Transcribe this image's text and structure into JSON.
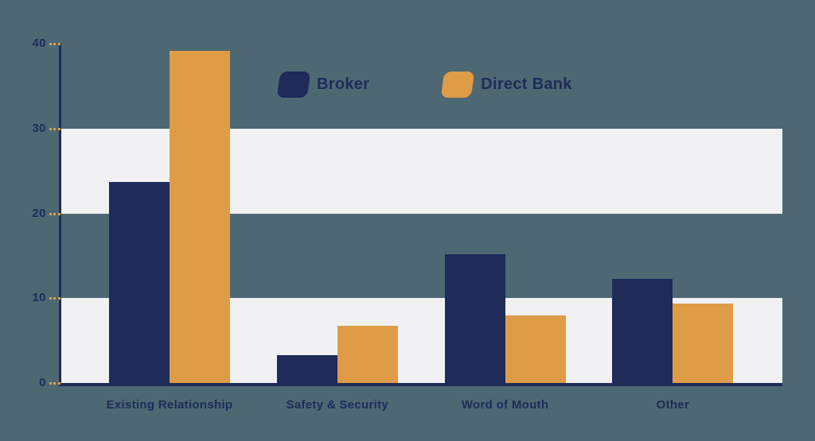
{
  "chart_data": {
    "type": "bar",
    "title": "",
    "xlabel": "",
    "ylabel": "",
    "categories": [
      "Existing Relationship",
      "Safety & Security",
      "Word of Mouth",
      "Other"
    ],
    "series": [
      {
        "name": "Broker",
        "color": "#1f2b59",
        "values": [
          23.7,
          3.3,
          15.2,
          12.3
        ]
      },
      {
        "name": "Direct Bank",
        "color": "#df9c46",
        "values": [
          39.2,
          6.7,
          8.0,
          9.4
        ]
      }
    ],
    "ylim": [
      0,
      40
    ],
    "yticks": [
      0,
      10,
      20,
      30,
      40
    ],
    "grid": "alternating horizontal bands (0-10 and 20-30 highlighted)",
    "legend_position": "top-center"
  },
  "colors": {
    "background": "#4d6873",
    "band": "#f1f1f4",
    "navy": "#1f2b59",
    "accent": "#df9c46"
  }
}
